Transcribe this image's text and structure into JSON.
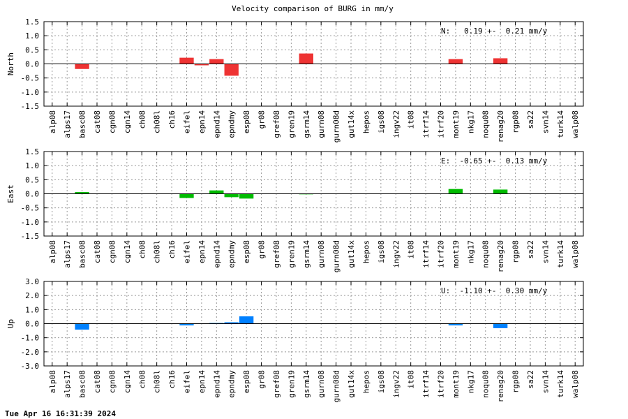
{
  "title": "Velocity comparison of BURG in mm/y",
  "footer_timestamp": "Tue Apr 16 16:31:39 2024",
  "chart_data": [
    {
      "type": "bar",
      "ylabel": "North",
      "ylim": [
        -1.5,
        1.5
      ],
      "yticks": [
        -1.5,
        -1.0,
        -0.5,
        0.0,
        0.5,
        1.0,
        1.5
      ],
      "ytick_labels": [
        "-1.5",
        "-1.0",
        "-0.5",
        "0.0",
        "0.5",
        "1.0",
        "1.5"
      ],
      "annotation": "N:   0.19 +-  0.21 mm/y",
      "color": "#ee3333",
      "grid": true,
      "categories": [
        "alp08",
        "alps17",
        "basc08",
        "cat08",
        "cgn08",
        "cgn14",
        "ch08",
        "ch08l",
        "ch16",
        "eifel",
        "epn14",
        "epnd14",
        "epndmy",
        "esp08",
        "gr08",
        "gref08",
        "gren19",
        "gsrm14",
        "gurn08",
        "gurn08d",
        "gut14x",
        "hepos",
        "igs08",
        "ingv22",
        "it08",
        "itrf14",
        "itrf20",
        "mont19",
        "nkg17",
        "noqu08",
        "renag20",
        "rgp08",
        "sa22",
        "svn14",
        "turk14",
        "walp08"
      ],
      "values": [
        0,
        0,
        -0.18,
        0,
        0,
        0,
        0,
        0,
        0,
        0.22,
        -0.05,
        0.17,
        -0.42,
        0,
        0,
        0,
        0,
        0.37,
        0,
        0,
        0,
        0,
        0,
        0,
        0,
        0,
        0,
        0.17,
        0,
        0,
        0.2,
        0,
        0,
        0,
        0,
        0
      ]
    },
    {
      "type": "bar",
      "ylabel": "East",
      "ylim": [
        -1.5,
        1.5
      ],
      "yticks": [
        -1.5,
        -1.0,
        -0.5,
        0.0,
        0.5,
        1.0,
        1.5
      ],
      "ytick_labels": [
        "-1.5",
        "-1.0",
        "-0.5",
        "0.0",
        "0.5",
        "1.0",
        "1.5"
      ],
      "annotation": "E:  -0.65 +-  0.13 mm/y",
      "color": "#00bb00",
      "grid": true,
      "categories": [
        "alp08",
        "alps17",
        "basc08",
        "cat08",
        "cgn08",
        "cgn14",
        "ch08",
        "ch08l",
        "ch16",
        "eifel",
        "epn14",
        "epnd14",
        "epndmy",
        "esp08",
        "gr08",
        "gref08",
        "gren19",
        "gsrm14",
        "gurn08",
        "gurn08d",
        "gut14x",
        "hepos",
        "igs08",
        "ingv22",
        "it08",
        "itrf14",
        "itrf20",
        "mont19",
        "nkg17",
        "noqu08",
        "renag20",
        "rgp08",
        "sa22",
        "svn14",
        "turk14",
        "walp08"
      ],
      "values": [
        0,
        0,
        0.06,
        0,
        0,
        0,
        0,
        0,
        0,
        -0.15,
        0,
        0.12,
        -0.12,
        -0.17,
        0,
        0,
        0,
        -0.02,
        0,
        0,
        0,
        0,
        0,
        0,
        0,
        0,
        0,
        0.17,
        0,
        0,
        0.15,
        0,
        0,
        0,
        0,
        0
      ]
    },
    {
      "type": "bar",
      "ylabel": "Up",
      "ylim": [
        -3.0,
        3.0
      ],
      "yticks": [
        -3.0,
        -2.0,
        -1.0,
        0.0,
        1.0,
        2.0,
        3.0
      ],
      "ytick_labels": [
        "-3.0",
        "-2.0",
        "-1.0",
        "0.0",
        "1.0",
        "2.0",
        "3.0"
      ],
      "annotation": "U:  -1.10 +-  0.30 mm/y",
      "color": "#0080ff",
      "grid": true,
      "categories": [
        "alp08",
        "alps17",
        "basc08",
        "cat08",
        "cgn08",
        "cgn14",
        "ch08",
        "ch08l",
        "ch16",
        "eifel",
        "epn14",
        "epnd14",
        "epndmy",
        "esp08",
        "gr08",
        "gref08",
        "gren19",
        "gsrm14",
        "gurn08",
        "gurn08d",
        "gut14x",
        "hepos",
        "igs08",
        "ingv22",
        "it08",
        "itrf14",
        "itrf20",
        "mont19",
        "nkg17",
        "noqu08",
        "renag20",
        "rgp08",
        "sa22",
        "svn14",
        "turk14",
        "walp08"
      ],
      "values": [
        0,
        0,
        -0.42,
        0,
        0,
        0,
        0,
        0,
        0,
        -0.12,
        0,
        0.05,
        0.1,
        0.52,
        0,
        0,
        0,
        0,
        0,
        0,
        0,
        0,
        0,
        0,
        0,
        0,
        0,
        -0.12,
        0,
        0,
        -0.32,
        0,
        0,
        0,
        0,
        0
      ]
    }
  ]
}
